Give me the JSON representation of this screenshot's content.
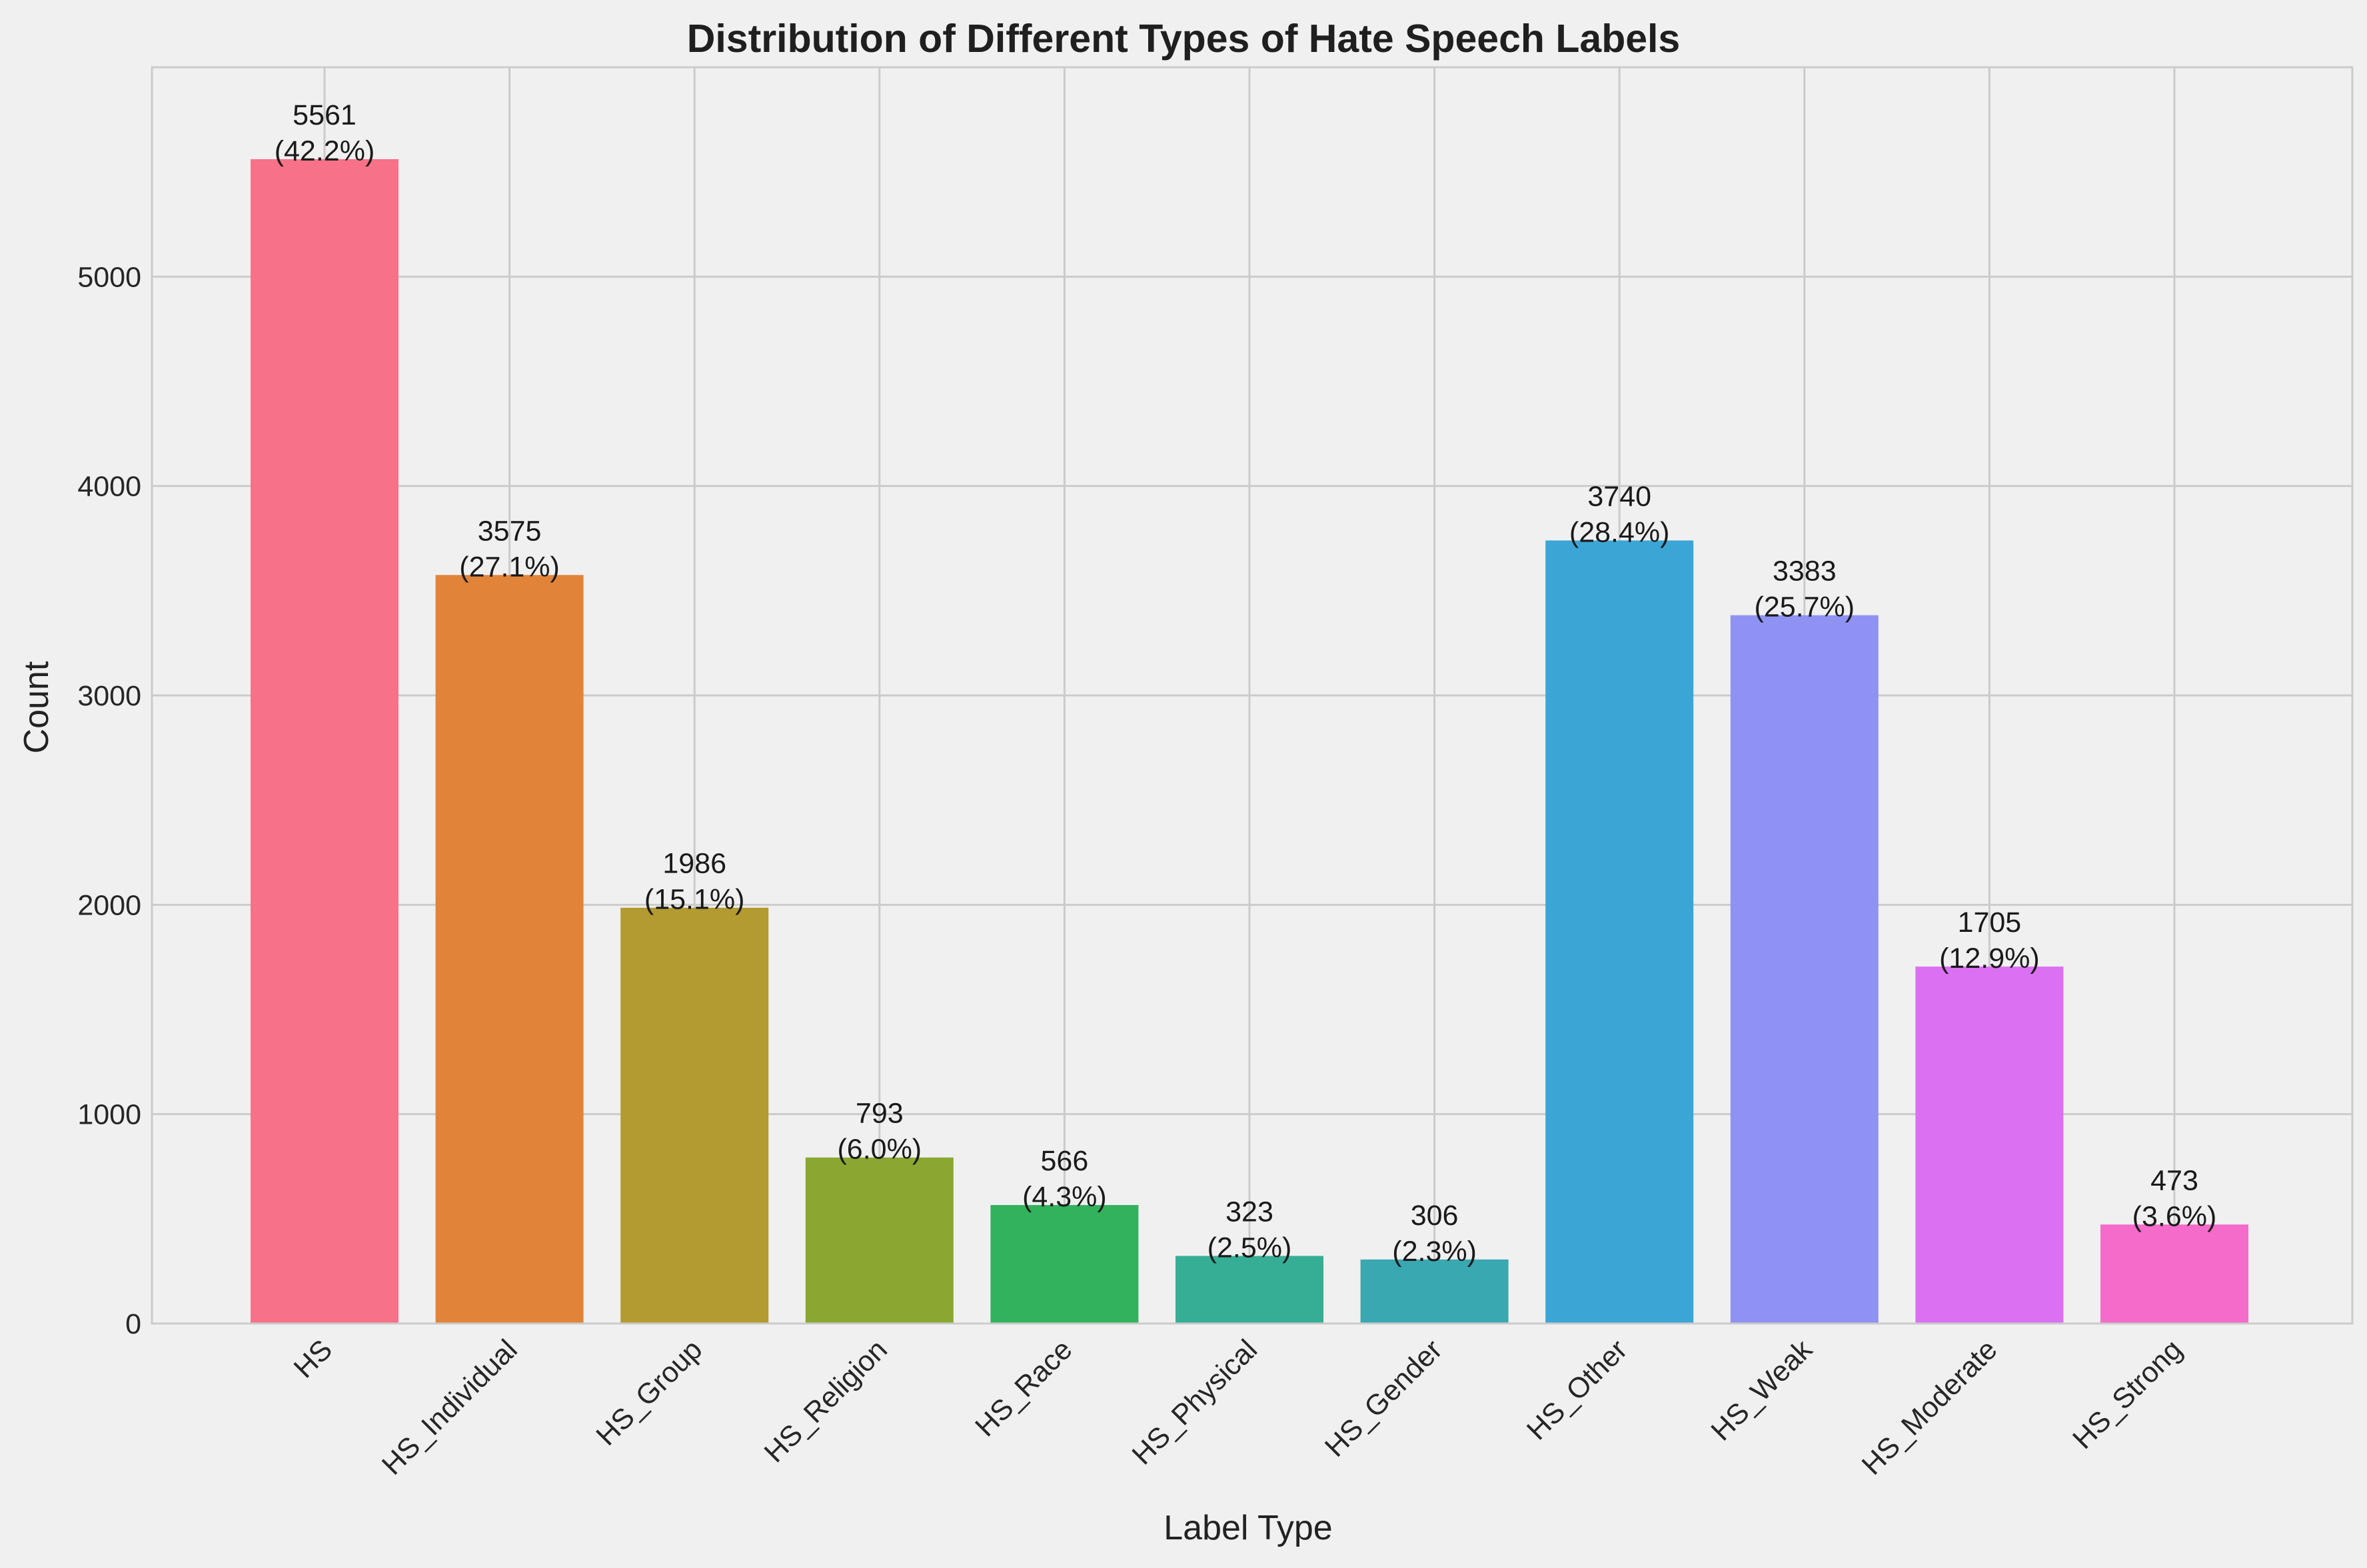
{
  "chart_data": {
    "type": "bar",
    "title": "Distribution of Different Types of Hate Speech Labels",
    "xlabel": "Label Type",
    "ylabel": "Count",
    "ylim": [
      0,
      6000
    ],
    "yticks": [
      0,
      1000,
      2000,
      3000,
      4000,
      5000
    ],
    "grid": true,
    "categories": [
      "HS",
      "HS_Individual",
      "HS_Group",
      "HS_Religion",
      "HS_Race",
      "HS_Physical",
      "HS_Gender",
      "HS_Other",
      "HS_Weak",
      "HS_Moderate",
      "HS_Strong"
    ],
    "values": [
      5561,
      3575,
      1986,
      793,
      566,
      323,
      306,
      3740,
      3383,
      1705,
      473
    ],
    "percent_labels": [
      "(42.2%)",
      "(27.1%)",
      "(15.1%)",
      "(6.0%)",
      "(4.3%)",
      "(2.5%)",
      "(2.3%)",
      "(28.4%)",
      "(25.7%)",
      "(12.9%)",
      "(3.6%)"
    ],
    "colors": [
      "#f77189",
      "#e1843a",
      "#b39a31",
      "#8ba732",
      "#33b25e",
      "#36ae96",
      "#39a8b1",
      "#3ba6d6",
      "#8f92f3",
      "#db71f2",
      "#f56bc9"
    ]
  }
}
